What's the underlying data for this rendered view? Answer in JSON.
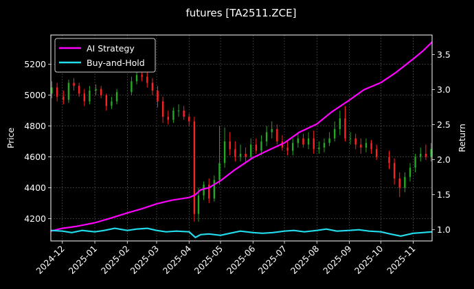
{
  "chart_data": {
    "type": "line",
    "title": "futures [TA2511.ZCE]",
    "xlabel": "",
    "ylabel_left": "Price",
    "ylabel_right": "Return",
    "x_ticks": [
      "2024-12",
      "2025-01",
      "2025-02",
      "2025-03",
      "2025-04",
      "2025-05",
      "2025-06",
      "2025-07",
      "2025-08",
      "2025-09",
      "2025-10",
      "2025-11"
    ],
    "x_range": [
      "2024-11-20",
      "2025-11-19"
    ],
    "y_left_ticks": [
      4200,
      4400,
      4600,
      4800,
      5000,
      5200
    ],
    "y_left_lim": [
      4055,
      5390
    ],
    "y_right_ticks": [
      1.0,
      1.5,
      2.0,
      2.5,
      3.0,
      3.5
    ],
    "y_right_lim": [
      0.84,
      3.78
    ],
    "grid": true,
    "legend_position": "top-left",
    "candles": {
      "up_color": "#22aa22",
      "down_color": "#ff2222",
      "dates": [
        "2024-11-21",
        "2024-11-26",
        "2024-12-02",
        "2024-12-07",
        "2024-12-12",
        "2024-12-17",
        "2024-12-22",
        "2024-12-27",
        "2025-01-02",
        "2025-01-07",
        "2025-01-12",
        "2025-01-17",
        "2025-01-22",
        "2025-02-05",
        "2025-02-10",
        "2025-02-15",
        "2025-02-20",
        "2025-02-25",
        "2025-03-02",
        "2025-03-07",
        "2025-03-12",
        "2025-03-17",
        "2025-03-22",
        "2025-03-27",
        "2025-04-01",
        "2025-04-06",
        "2025-04-10",
        "2025-04-15",
        "2025-04-20",
        "2025-04-25",
        "2025-04-30",
        "2025-05-05",
        "2025-05-10",
        "2025-05-15",
        "2025-05-20",
        "2025-05-25",
        "2025-05-30",
        "2025-06-04",
        "2025-06-09",
        "2025-06-14",
        "2025-06-19",
        "2025-06-24",
        "2025-06-29",
        "2025-07-04",
        "2025-07-09",
        "2025-07-14",
        "2025-07-19",
        "2025-07-24",
        "2025-07-29",
        "2025-08-03",
        "2025-08-08",
        "2025-08-13",
        "2025-08-18",
        "2025-08-23",
        "2025-08-28",
        "2025-09-02",
        "2025-09-07",
        "2025-09-12",
        "2025-09-17",
        "2025-09-22",
        "2025-09-27",
        "2025-10-09",
        "2025-10-14",
        "2025-10-19",
        "2025-10-24",
        "2025-10-29",
        "2025-11-03",
        "2025-11-08",
        "2025-11-13",
        "2025-11-18"
      ],
      "open": [
        5010,
        5050,
        4990,
        4970,
        5080,
        5060,
        5010,
        4960,
        5030,
        5040,
        5000,
        4930,
        4960,
        5020,
        5090,
        5130,
        5120,
        5080,
        5030,
        4960,
        4860,
        4840,
        4900,
        4900,
        4860,
        4830,
        4230,
        4350,
        4420,
        4330,
        4450,
        4560,
        4700,
        4650,
        4600,
        4620,
        4600,
        4680,
        4640,
        4700,
        4760,
        4780,
        4700,
        4660,
        4640,
        4690,
        4720,
        4680,
        4720,
        4650,
        4660,
        4690,
        4720,
        4780,
        4850,
        4720,
        4720,
        4680,
        4660,
        4690,
        4650,
        4600,
        4560,
        4460,
        4400,
        4470,
        4530,
        4600,
        4620,
        4600
      ],
      "close": [
        5050,
        4990,
        4970,
        5080,
        5060,
        5010,
        4960,
        5030,
        5040,
        5000,
        4930,
        4960,
        5020,
        5090,
        5130,
        5120,
        5080,
        5030,
        4960,
        4860,
        4840,
        4900,
        4900,
        4860,
        4830,
        4230,
        4350,
        4420,
        4330,
        4450,
        4560,
        4700,
        4650,
        4600,
        4620,
        4600,
        4680,
        4640,
        4700,
        4760,
        4780,
        4700,
        4660,
        4640,
        4690,
        4720,
        4680,
        4720,
        4650,
        4660,
        4690,
        4720,
        4780,
        4850,
        4720,
        4720,
        4680,
        4660,
        4690,
        4650,
        4600,
        4560,
        4460,
        4400,
        4470,
        4530,
        4600,
        4620,
        4600,
        4650
      ],
      "high": [
        5090,
        5080,
        5030,
        5100,
        5110,
        5080,
        5040,
        5060,
        5070,
        5060,
        5010,
        4990,
        5040,
        5120,
        5160,
        5180,
        5150,
        5110,
        5060,
        4990,
        4900,
        4920,
        4940,
        4930,
        4880,
        4860,
        4400,
        4440,
        4460,
        4480,
        4800,
        4790,
        4760,
        4700,
        4680,
        4660,
        4720,
        4720,
        4740,
        4800,
        4830,
        4810,
        4740,
        4700,
        4720,
        4760,
        4750,
        4760,
        4770,
        4700,
        4720,
        4760,
        4830,
        4900,
        4930,
        4760,
        4750,
        4720,
        4720,
        4710,
        4680,
        4640,
        4590,
        4500,
        4500,
        4560,
        4620,
        4660,
        4680,
        4690
      ],
      "low": [
        4980,
        4960,
        4940,
        4950,
        5030,
        4990,
        4930,
        4940,
        5000,
        4980,
        4900,
        4910,
        4940,
        5000,
        5070,
        5090,
        5050,
        5000,
        4920,
        4820,
        4810,
        4820,
        4860,
        4840,
        4800,
        4180,
        4180,
        4320,
        4300,
        4310,
        4420,
        4530,
        4610,
        4570,
        4570,
        4560,
        4580,
        4620,
        4610,
        4670,
        4720,
        4680,
        4640,
        4610,
        4610,
        4660,
        4660,
        4650,
        4620,
        4620,
        4630,
        4670,
        4700,
        4740,
        4700,
        4680,
        4650,
        4620,
        4630,
        4620,
        4580,
        4520,
        4420,
        4340,
        4370,
        4440,
        4500,
        4570,
        4580,
        4570
      ]
    },
    "series": [
      {
        "name": "AI Strategy",
        "color": "#ff00ff",
        "axis": "right",
        "x": [
          "2024-11-20",
          "2024-12-01",
          "2024-12-15",
          "2025-01-01",
          "2025-01-15",
          "2025-02-01",
          "2025-02-15",
          "2025-03-01",
          "2025-03-15",
          "2025-04-01",
          "2025-04-07",
          "2025-04-12",
          "2025-04-20",
          "2025-05-01",
          "2025-05-15",
          "2025-06-01",
          "2025-06-15",
          "2025-07-01",
          "2025-07-15",
          "2025-08-01",
          "2025-08-15",
          "2025-09-01",
          "2025-09-15",
          "2025-10-01",
          "2025-10-15",
          "2025-11-01",
          "2025-11-10",
          "2025-11-19"
        ],
        "y": [
          0.98,
          1.02,
          1.05,
          1.1,
          1.16,
          1.24,
          1.3,
          1.37,
          1.42,
          1.46,
          1.5,
          1.57,
          1.6,
          1.7,
          1.86,
          2.03,
          2.13,
          2.24,
          2.39,
          2.51,
          2.68,
          2.85,
          3.0,
          3.1,
          3.24,
          3.44,
          3.55,
          3.68
        ]
      },
      {
        "name": "Buy-and-Hold",
        "color": "#22ddee",
        "axis": "right",
        "x": [
          "2024-11-20",
          "2024-12-01",
          "2024-12-10",
          "2024-12-20",
          "2025-01-01",
          "2025-01-10",
          "2025-01-20",
          "2025-02-01",
          "2025-02-10",
          "2025-02-20",
          "2025-03-01",
          "2025-03-10",
          "2025-03-20",
          "2025-04-01",
          "2025-04-07",
          "2025-04-12",
          "2025-04-20",
          "2025-05-01",
          "2025-05-10",
          "2025-05-20",
          "2025-06-01",
          "2025-06-10",
          "2025-06-20",
          "2025-07-01",
          "2025-07-10",
          "2025-07-20",
          "2025-08-01",
          "2025-08-10",
          "2025-08-20",
          "2025-09-01",
          "2025-09-10",
          "2025-09-20",
          "2025-10-01",
          "2025-10-10",
          "2025-10-20",
          "2025-11-01",
          "2025-11-10",
          "2025-11-19"
        ],
        "y": [
          0.99,
          0.98,
          0.96,
          0.99,
          0.97,
          0.99,
          1.02,
          0.99,
          1.01,
          1.02,
          0.99,
          0.97,
          0.98,
          0.97,
          0.89,
          0.93,
          0.94,
          0.92,
          0.95,
          0.98,
          0.96,
          0.95,
          0.96,
          0.98,
          0.99,
          0.97,
          0.99,
          1.01,
          0.98,
          0.99,
          1.0,
          0.98,
          0.97,
          0.94,
          0.91,
          0.95,
          0.96,
          0.97
        ]
      }
    ]
  }
}
